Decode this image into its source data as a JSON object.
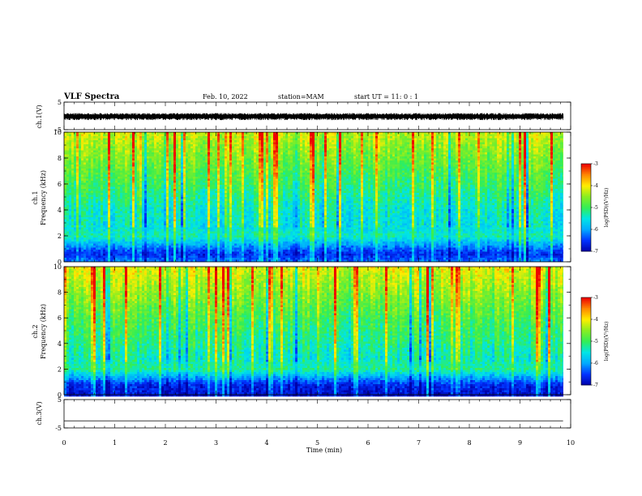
{
  "header": {
    "title": "VLF Spectra",
    "date": "Feb. 10, 2022",
    "station": "station=MAM",
    "start": "start  UT =   11: 0  : 1"
  },
  "chart_data": [
    {
      "type": "line",
      "panel": "ch1_waveform",
      "ylabel": "ch.1(V)",
      "ylim": [
        -5,
        5
      ],
      "yticks": [
        "5",
        "-5"
      ],
      "xlim": [
        0,
        10
      ],
      "data_end_min": 9.85,
      "amplitude_range_V": [
        -1.5,
        1.0
      ],
      "color": "#000000"
    },
    {
      "type": "heatmap",
      "panel": "ch1_spectrogram",
      "ylabel_top": "ch.1",
      "ylabel": "Frequency (kHz)",
      "ylim": [
        0,
        10
      ],
      "yticks": [
        "0",
        "2",
        "4",
        "6",
        "8",
        "10"
      ],
      "xlim": [
        0,
        10
      ],
      "colorbar": {
        "label": "log(PSD)(V²/Hz)",
        "range": [
          -7,
          -3
        ],
        "ticks": [
          "-3",
          "-4",
          "-5",
          "-6",
          "-7"
        ]
      },
      "profile": [
        {
          "f_khz": 0.0,
          "log_psd": -6.2
        },
        {
          "f_khz": 0.6,
          "log_psd": -6.6
        },
        {
          "f_khz": 1.4,
          "log_psd": -5.9
        },
        {
          "f_khz": 2.0,
          "log_psd": -5.3
        },
        {
          "f_khz": 2.6,
          "log_psd": -5.5
        },
        {
          "f_khz": 4.0,
          "log_psd": -5.4
        },
        {
          "f_khz": 6.0,
          "log_psd": -5.0
        },
        {
          "f_khz": 8.0,
          "log_psd": -4.6
        },
        {
          "f_khz": 10.0,
          "log_psd": -4.2
        }
      ]
    },
    {
      "type": "heatmap",
      "panel": "ch2_spectrogram",
      "ylabel_top": "ch.2",
      "ylabel": "Frequency (kHz)",
      "ylim": [
        0,
        10
      ],
      "yticks": [
        "0",
        "2",
        "4",
        "6",
        "8",
        "10"
      ],
      "xlim": [
        0,
        10
      ],
      "colorbar": {
        "label": "log(PSD)(V²/Hz)",
        "range": [
          -7,
          -3
        ],
        "ticks": [
          "-3",
          "-4",
          "-5",
          "-6",
          "-7"
        ]
      },
      "profile": [
        {
          "f_khz": 0.0,
          "log_psd": -6.8
        },
        {
          "f_khz": 0.8,
          "log_psd": -6.6
        },
        {
          "f_khz": 1.5,
          "log_psd": -5.8
        },
        {
          "f_khz": 2.0,
          "log_psd": -5.2
        },
        {
          "f_khz": 2.8,
          "log_psd": -5.4
        },
        {
          "f_khz": 4.0,
          "log_psd": -5.2
        },
        {
          "f_khz": 6.0,
          "log_psd": -4.9
        },
        {
          "f_khz": 8.0,
          "log_psd": -4.5
        },
        {
          "f_khz": 10.0,
          "log_psd": -4.1
        }
      ]
    },
    {
      "type": "line",
      "panel": "ch3_waveform",
      "ylabel": "ch.3(V)",
      "ylim": [
        -5,
        5
      ],
      "yticks": [
        "5",
        "-5"
      ],
      "xlim": [
        0,
        10
      ],
      "data_end_min": 9.85,
      "value_V": -2.5,
      "color": "#000000"
    }
  ],
  "xaxis": {
    "label": "Time (min)",
    "ticks": [
      "0",
      "1",
      "2",
      "3",
      "4",
      "5",
      "6",
      "7",
      "8",
      "9",
      "10"
    ]
  },
  "colors": {
    "colormap": [
      "#0000aa",
      "#0033ff",
      "#00aaff",
      "#00e5e5",
      "#33ee55",
      "#88ee22",
      "#ffee00",
      "#ff8800",
      "#ee0000"
    ]
  }
}
